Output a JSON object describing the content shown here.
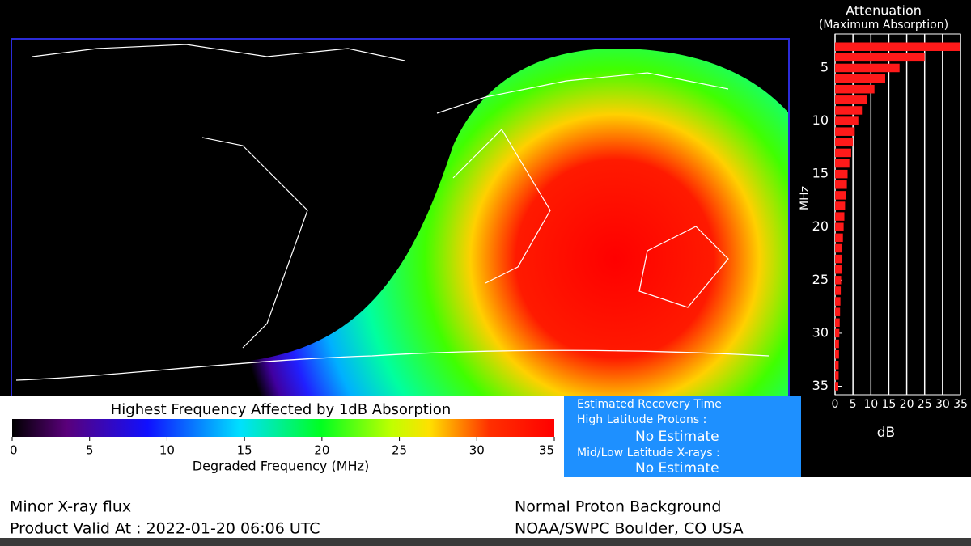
{
  "map": {
    "title": "Highest Frequency Affected by 1dB Absorption",
    "colorbar": {
      "label": "Degraded Frequency (MHz)",
      "lim": [
        0,
        35
      ],
      "ticks": [
        0,
        5,
        10,
        15,
        20,
        25,
        30,
        35
      ]
    }
  },
  "recovery": {
    "title": "Estimated Recovery Time",
    "high_label": "High Latitude Protons :",
    "high_value": "No Estimate",
    "mid_label": "Mid/Low Latitude X-rays :",
    "mid_value": "No Estimate"
  },
  "footer": {
    "left": [
      "Minor X-ray flux",
      "Product Valid At : 2022-01-20 06:06 UTC"
    ],
    "right": [
      "Normal Proton Background",
      "NOAA/SWPC Boulder, CO USA"
    ]
  },
  "chart_data": {
    "type": "bar",
    "orientation": "horizontal",
    "title": "Attenuation",
    "subtitle": "(Maximum Absorption)",
    "y_label": "MHz",
    "x_label": "dB",
    "y": [
      3,
      4,
      5,
      6,
      7,
      8,
      9,
      10,
      11,
      12,
      13,
      14,
      15,
      16,
      17,
      18,
      19,
      20,
      21,
      22,
      23,
      24,
      25,
      26,
      27,
      28,
      29,
      30,
      31,
      32,
      33,
      34,
      35
    ],
    "values": [
      35,
      25,
      18,
      14,
      11,
      9,
      7.5,
      6.5,
      5.5,
      5,
      4.5,
      4,
      3.5,
      3.3,
      3,
      2.8,
      2.6,
      2.4,
      2.2,
      2,
      1.9,
      1.8,
      1.7,
      1.6,
      1.5,
      1.4,
      1.3,
      1.2,
      1.1,
      1.1,
      1,
      1,
      0.9
    ],
    "color": "#ff1a1a",
    "xlim": [
      0,
      35
    ],
    "xticks": [
      0,
      5,
      10,
      15,
      20,
      25,
      30,
      35
    ],
    "ylim": [
      1.8,
      35.8
    ],
    "yticks": [
      5,
      10,
      15,
      20,
      25,
      30,
      35
    ],
    "grid": true
  }
}
